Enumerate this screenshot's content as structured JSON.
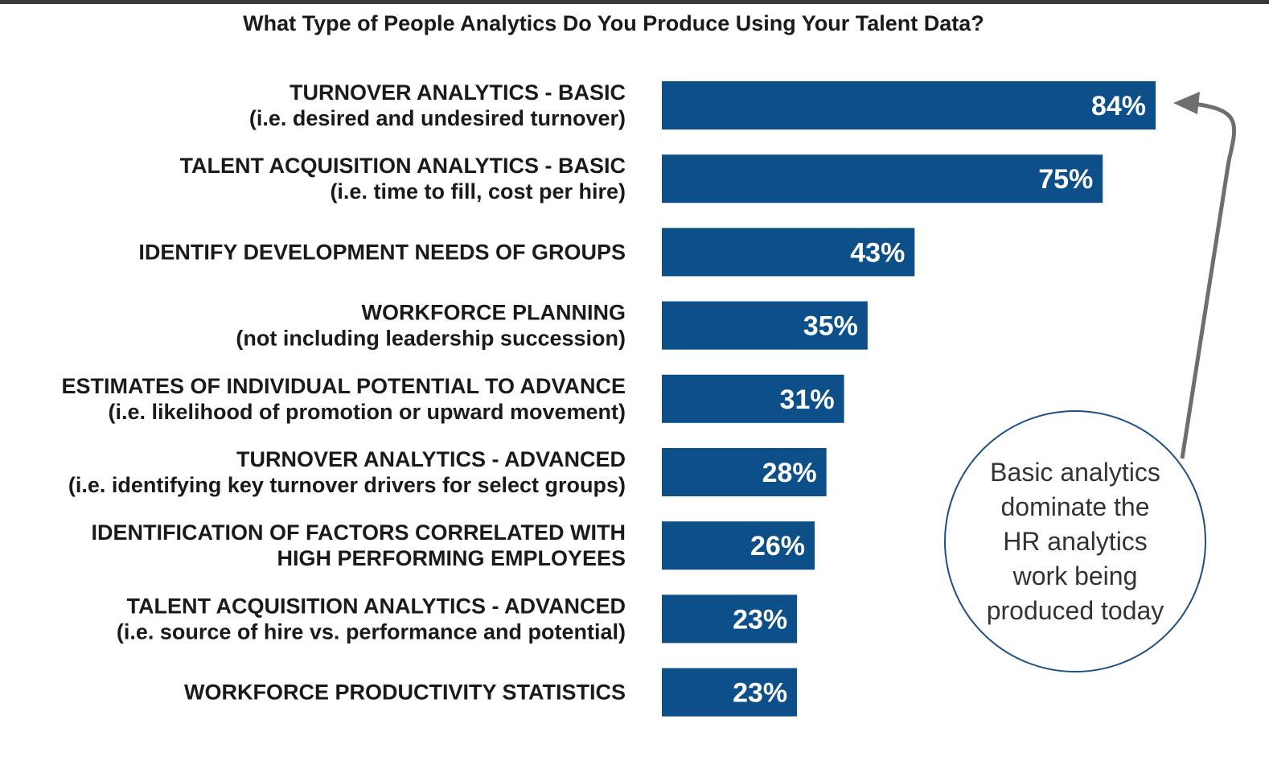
{
  "chart_data": {
    "type": "bar",
    "orientation": "horizontal",
    "title": "What Type of People Analytics Do You Produce Using Your Talent Data?",
    "categories": [
      [
        "TURNOVER ANALYTICS - BASIC",
        "(i.e. desired and undesired turnover)"
      ],
      [
        "TALENT ACQUISITION ANALYTICS - BASIC",
        "(i.e. time to fill, cost per hire)"
      ],
      [
        "IDENTIFY DEVELOPMENT NEEDS OF GROUPS"
      ],
      [
        "WORKFORCE PLANNING",
        "(not including leadership succession)"
      ],
      [
        "ESTIMATES OF INDIVIDUAL POTENTIAL TO ADVANCE",
        "(i.e. likelihood of promotion or upward movement)"
      ],
      [
        "TURNOVER ANALYTICS - ADVANCED",
        "(i.e. identifying key turnover drivers for select groups)"
      ],
      [
        "IDENTIFICATION OF FACTORS CORRELATED WITH",
        "HIGH PERFORMING EMPLOYEES"
      ],
      [
        "TALENT ACQUISITION ANALYTICS - ADVANCED",
        "(i.e. source of hire vs. performance and potential)"
      ],
      [
        "WORKFORCE PRODUCTIVITY STATISTICS"
      ]
    ],
    "values": [
      84,
      75,
      43,
      35,
      31,
      28,
      26,
      23,
      23
    ],
    "value_labels": [
      "84%",
      "75%",
      "43%",
      "35%",
      "31%",
      "28%",
      "26%",
      "23%",
      "23%"
    ],
    "unit": "%",
    "bar_color": "#0d4f88",
    "annotation": "Basic analytics dominate the HR analytics work being produced today",
    "arrow_color": "#6e6e6e",
    "grid": false,
    "legend": "none"
  }
}
